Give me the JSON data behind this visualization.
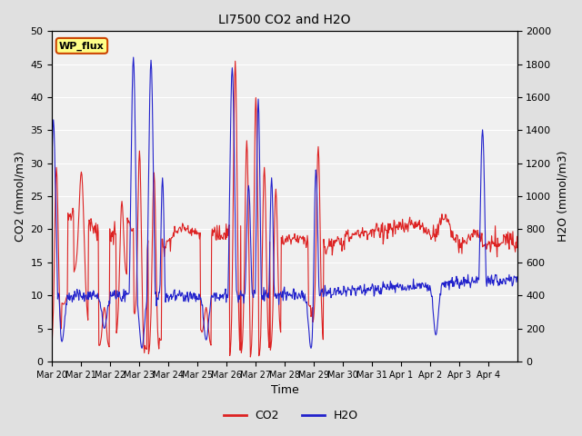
{
  "title": "LI7500 CO2 and H2O",
  "xlabel": "Time",
  "ylabel_left": "CO2 (mmol/m3)",
  "ylabel_right": "H2O (mmol/m3)",
  "ylim_left": [
    0,
    50
  ],
  "ylim_right": [
    0,
    2000
  ],
  "yticks_left": [
    0,
    5,
    10,
    15,
    20,
    25,
    30,
    35,
    40,
    45,
    50
  ],
  "yticks_right": [
    0,
    200,
    400,
    600,
    800,
    1000,
    1200,
    1400,
    1600,
    1800,
    2000
  ],
  "co2_color": "#dd2222",
  "h2o_color": "#2222cc",
  "background_color": "#e0e0e0",
  "plot_bg_color": "#f0f0f0",
  "annotation_text": "WP_flux",
  "legend_co2": "CO2",
  "legend_h2o": "H2O",
  "figsize": [
    6.4,
    4.8
  ],
  "dpi": 100,
  "tick_labels": [
    "Mar 20",
    "Mar 21",
    "Mar 22",
    "Mar 23",
    "Mar 24",
    "Mar 25",
    "Mar 26",
    "Mar 27",
    "Mar 28",
    "Mar 29",
    "Mar 30",
    "Mar 31",
    "Apr 1",
    "Apr 2",
    "Apr 3",
    "Apr 4"
  ]
}
